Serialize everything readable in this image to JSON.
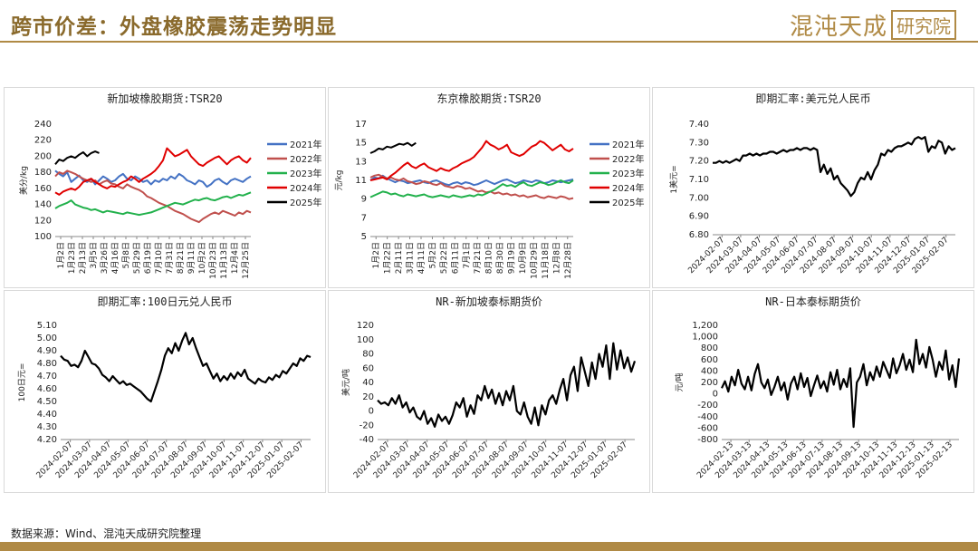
{
  "header": {
    "title": "跨市价差：外盘橡胶震荡走势明显",
    "logo_text": "混沌天成",
    "logo_box_text": "研究院"
  },
  "footer": {
    "source": "数据来源：Wind、混沌天成研究院整理"
  },
  "colors": {
    "2021": "#4472c4",
    "2022": "#c0504d",
    "2023": "#22b14c",
    "2024": "#e00000",
    "2025": "#000000",
    "accent": "#b08a45"
  },
  "chart_data": [
    {
      "id": "sg",
      "type": "line",
      "title": "新加坡橡胶期货:TSR20",
      "ylabel": "美分/kg",
      "ylim": [
        100,
        240
      ],
      "yticks": [
        100,
        120,
        140,
        160,
        180,
        200,
        220,
        240
      ],
      "xticks": [
        "1月2日",
        "1月23日",
        "2月13日",
        "3月5日",
        "3月26日",
        "4月16日",
        "5月8日",
        "5月29日",
        "6月19日",
        "7月10日",
        "7月31日",
        "8月21日",
        "9月11日",
        "10月2日",
        "10月23日",
        "11月13日",
        "12月4日",
        "12月25日"
      ],
      "series": [
        {
          "name": "2021年",
          "color": "#4472c4",
          "values": [
            182,
            178,
            175,
            180,
            168,
            172,
            176,
            170,
            168,
            172,
            165,
            170,
            175,
            172,
            168,
            170,
            175,
            178,
            172,
            170,
            175,
            172,
            168,
            170,
            165,
            170,
            168,
            172,
            170,
            175,
            172,
            178,
            175,
            170,
            168,
            165,
            170,
            168,
            162,
            165,
            170,
            172,
            168,
            165,
            170,
            172,
            170,
            168,
            172,
            175
          ]
        },
        {
          "name": "2022年",
          "color": "#c0504d",
          "values": [
            175,
            180,
            178,
            182,
            180,
            178,
            175,
            172,
            170,
            168,
            170,
            165,
            168,
            170,
            166,
            165,
            162,
            160,
            165,
            162,
            160,
            158,
            155,
            150,
            148,
            145,
            142,
            140,
            138,
            135,
            132,
            130,
            128,
            125,
            122,
            120,
            118,
            122,
            125,
            128,
            130,
            128,
            132,
            130,
            128,
            126,
            130,
            128,
            132,
            130
          ]
        },
        {
          "name": "2023年",
          "color": "#22b14c",
          "values": [
            135,
            138,
            140,
            142,
            145,
            140,
            138,
            136,
            135,
            133,
            134,
            132,
            130,
            132,
            131,
            130,
            129,
            128,
            130,
            129,
            128,
            127,
            128,
            129,
            130,
            132,
            134,
            136,
            138,
            140,
            142,
            141,
            140,
            142,
            144,
            146,
            145,
            147,
            148,
            146,
            145,
            147,
            149,
            150,
            148,
            150,
            152,
            151,
            153,
            155
          ]
        },
        {
          "name": "2024年",
          "color": "#e00000",
          "values": [
            155,
            152,
            156,
            158,
            160,
            158,
            162,
            168,
            170,
            172,
            168,
            165,
            162,
            160,
            163,
            162,
            165,
            168,
            170,
            175,
            172,
            168,
            172,
            175,
            178,
            182,
            188,
            195,
            210,
            205,
            200,
            202,
            205,
            208,
            200,
            195,
            190,
            188,
            192,
            195,
            198,
            200,
            195,
            190,
            195,
            198,
            200,
            195,
            192,
            198
          ]
        },
        {
          "name": "2025年",
          "color": "#000000",
          "values": [
            190,
            196,
            194,
            198,
            200,
            198,
            202,
            205,
            200,
            204,
            206,
            204
          ]
        }
      ],
      "legend_position": "right"
    },
    {
      "id": "jp",
      "type": "line",
      "title": "东京橡胶期货:TSR20",
      "ylabel": "元/kg",
      "ylim": [
        5,
        17
      ],
      "yticks": [
        5,
        7,
        9,
        11,
        13,
        15,
        17
      ],
      "xticks": [
        "1月2日",
        "1月22日",
        "2月11日",
        "3月11日",
        "4月11日",
        "5月2日",
        "5月22日",
        "6月11日",
        "7月1日",
        "7月21日",
        "8月10日",
        "8月30日",
        "9月19日",
        "10月9日",
        "10月29日",
        "11月18日",
        "12月8日",
        "12月28日"
      ],
      "series": [
        {
          "name": "2021年",
          "color": "#4472c4",
          "values": [
            11.0,
            11.3,
            11.2,
            11.5,
            11.2,
            11.0,
            10.8,
            11.0,
            10.9,
            10.7,
            10.8,
            10.9,
            11.0,
            10.8,
            10.7,
            10.9,
            11.0,
            10.8,
            10.6,
            10.5,
            10.7,
            10.8,
            10.6,
            10.8,
            10.7,
            10.5,
            10.6,
            10.8,
            11.0,
            10.8,
            10.6,
            10.8,
            11.0,
            11.1,
            10.9,
            10.7,
            10.8,
            11.0,
            10.9,
            10.8,
            11.0,
            10.9,
            10.7,
            10.8,
            11.0,
            10.9,
            10.8,
            10.9,
            11.0,
            11.1
          ]
        },
        {
          "name": "2022年",
          "color": "#c0504d",
          "values": [
            11.3,
            11.5,
            11.6,
            11.4,
            11.2,
            11.3,
            11.1,
            11.0,
            11.2,
            10.9,
            10.8,
            10.6,
            10.7,
            10.9,
            10.8,
            10.6,
            10.5,
            10.7,
            10.4,
            10.3,
            10.2,
            10.4,
            10.3,
            10.1,
            10.2,
            10.0,
            9.8,
            9.9,
            9.7,
            9.8,
            9.6,
            9.7,
            9.5,
            9.6,
            9.4,
            9.5,
            9.3,
            9.4,
            9.2,
            9.3,
            9.4,
            9.2,
            9.1,
            9.3,
            9.2,
            9.1,
            9.3,
            9.2,
            9.0,
            9.1
          ]
        },
        {
          "name": "2023年",
          "color": "#22b14c",
          "values": [
            9.2,
            9.4,
            9.6,
            9.8,
            9.7,
            9.5,
            9.6,
            9.4,
            9.3,
            9.5,
            9.4,
            9.3,
            9.4,
            9.5,
            9.3,
            9.2,
            9.3,
            9.4,
            9.3,
            9.2,
            9.4,
            9.3,
            9.2,
            9.3,
            9.4,
            9.3,
            9.5,
            9.4,
            9.6,
            9.8,
            10.0,
            10.3,
            10.6,
            10.4,
            10.5,
            10.3,
            10.6,
            10.8,
            10.5,
            10.4,
            10.6,
            10.8,
            10.7,
            10.5,
            10.6,
            10.8,
            11.0,
            10.8,
            10.7,
            11.0
          ]
        },
        {
          "name": "2024年",
          "color": "#e00000",
          "values": [
            11.0,
            11.1,
            11.2,
            11.3,
            11.1,
            11.5,
            11.8,
            12.2,
            12.6,
            12.9,
            12.5,
            12.3,
            12.6,
            12.8,
            12.4,
            12.2,
            12.0,
            12.3,
            12.1,
            12.0,
            12.3,
            12.5,
            12.8,
            13.0,
            13.2,
            13.5,
            14.0,
            14.5,
            15.2,
            14.8,
            14.6,
            14.3,
            14.5,
            14.8,
            14.0,
            13.8,
            13.6,
            13.8,
            14.2,
            14.6,
            14.8,
            15.2,
            15.0,
            14.6,
            14.2,
            14.5,
            14.8,
            14.3,
            14.1,
            14.4
          ]
        },
        {
          "name": "2025年",
          "color": "#000000",
          "values": [
            13.9,
            14.1,
            14.4,
            14.3,
            14.6,
            14.5,
            14.7,
            14.9,
            14.8,
            15.0,
            14.7,
            15.0
          ]
        }
      ],
      "legend_position": "right"
    },
    {
      "id": "fx",
      "type": "line",
      "title": "即期汇率:美元兑人民币",
      "ylabel": "1美元=",
      "ylim": [
        6.8,
        7.4
      ],
      "yticks": [
        "6.80",
        "6.90",
        "7.00",
        "7.10",
        "7.20",
        "7.30",
        "7.40"
      ],
      "xticks": [
        "2024-02-07",
        "2024-03-07",
        "2024-04-07",
        "2024-05-07",
        "2024-06-07",
        "2024-07-07",
        "2024-08-07",
        "2024-09-07",
        "2024-10-07",
        "2024-11-07",
        "2024-12-07",
        "2025-01-07",
        "2025-02-07"
      ],
      "series": [
        {
          "name": "",
          "color": "#000000",
          "values": [
            7.19,
            7.19,
            7.2,
            7.19,
            7.2,
            7.19,
            7.2,
            7.21,
            7.2,
            7.23,
            7.23,
            7.24,
            7.23,
            7.24,
            7.23,
            7.24,
            7.24,
            7.25,
            7.25,
            7.24,
            7.25,
            7.26,
            7.25,
            7.26,
            7.26,
            7.27,
            7.26,
            7.27,
            7.27,
            7.26,
            7.27,
            7.26,
            7.14,
            7.18,
            7.13,
            7.16,
            7.1,
            7.12,
            7.08,
            7.06,
            7.04,
            7.01,
            7.03,
            7.08,
            7.11,
            7.1,
            7.14,
            7.1,
            7.15,
            7.18,
            7.24,
            7.23,
            7.26,
            7.25,
            7.27,
            7.28,
            7.28,
            7.29,
            7.3,
            7.29,
            7.32,
            7.33,
            7.32,
            7.33,
            7.25,
            7.28,
            7.27,
            7.31,
            7.3,
            7.24,
            7.28,
            7.26,
            7.27
          ]
        }
      ],
      "legend_position": "none"
    },
    {
      "id": "jpy",
      "type": "line",
      "title": "即期汇率:100日元兑人民币",
      "ylabel": "100日元=",
      "ylim": [
        4.2,
        5.1
      ],
      "yticks": [
        "4.20",
        "4.30",
        "4.40",
        "4.50",
        "4.60",
        "4.70",
        "4.80",
        "4.90",
        "5.00",
        "5.10"
      ],
      "xticks": [
        "2024-02-07",
        "2024-03-07",
        "2024-04-07",
        "2024-05-07",
        "2024-06-07",
        "2024-07-07",
        "2024-08-07",
        "2024-09-07",
        "2024-10-07",
        "2024-11-07",
        "2024-12-07",
        "2025-01-07",
        "2025-02-07"
      ],
      "series": [
        {
          "name": "",
          "color": "#000000",
          "values": [
            4.86,
            4.83,
            4.82,
            4.78,
            4.79,
            4.77,
            4.82,
            4.9,
            4.85,
            4.8,
            4.79,
            4.76,
            4.71,
            4.69,
            4.66,
            4.7,
            4.67,
            4.64,
            4.66,
            4.63,
            4.64,
            4.62,
            4.6,
            4.58,
            4.55,
            4.52,
            4.5,
            4.58,
            4.66,
            4.75,
            4.86,
            4.92,
            4.88,
            4.96,
            4.9,
            4.98,
            5.04,
            4.95,
            5.0,
            4.92,
            4.85,
            4.78,
            4.8,
            4.74,
            4.68,
            4.72,
            4.66,
            4.7,
            4.67,
            4.72,
            4.68,
            4.73,
            4.7,
            4.75,
            4.68,
            4.66,
            4.64,
            4.68,
            4.66,
            4.65,
            4.69,
            4.67,
            4.71,
            4.69,
            4.74,
            4.72,
            4.76,
            4.8,
            4.78,
            4.84,
            4.82,
            4.86,
            4.85
          ]
        }
      ],
      "legend_position": "none"
    },
    {
      "id": "nrsg",
      "type": "line",
      "title": "NR-新加坡泰标期货价",
      "ylabel": "美元/吨",
      "ylim": [
        -40,
        120
      ],
      "yticks": [
        -40,
        -20,
        0,
        20,
        40,
        60,
        80,
        100,
        120
      ],
      "xticks": [
        "2024-02-07",
        "2024-03-07",
        "2024-04-07",
        "2024-05-07",
        "2024-06-07",
        "2024-07-07",
        "2024-08-07",
        "2024-09-07",
        "2024-10-07",
        "2024-11-07",
        "2024-12-07",
        "2025-01-07",
        "2025-02-07"
      ],
      "series": [
        {
          "name": "",
          "color": "#000000",
          "values": [
            15,
            10,
            12,
            8,
            18,
            10,
            22,
            5,
            12,
            -2,
            5,
            -8,
            -12,
            0,
            -18,
            -10,
            -22,
            -5,
            -14,
            -8,
            -18,
            -6,
            12,
            5,
            18,
            -8,
            8,
            -4,
            22,
            15,
            35,
            18,
            30,
            10,
            25,
            8,
            28,
            15,
            35,
            0,
            -5,
            12,
            -8,
            -18,
            5,
            -20,
            8,
            -5,
            15,
            22,
            10,
            30,
            45,
            15,
            50,
            62,
            28,
            75,
            55,
            35,
            68,
            45,
            80,
            62,
            92,
            45,
            95,
            58,
            85,
            60,
            75,
            55,
            70
          ]
        }
      ],
      "legend_position": "none"
    },
    {
      "id": "nrjp",
      "type": "line",
      "title": "NR-日本泰标期货价",
      "ylabel": "元/吨",
      "ylim": [
        -800,
        1200
      ],
      "yticks": [
        "-800",
        "-600",
        "-400",
        "-200",
        "0",
        "200",
        "400",
        "600",
        "800",
        "1,000",
        "1,200"
      ],
      "xticks": [
        "2024-02-13",
        "2024-03-13",
        "2024-04-13",
        "2024-05-13",
        "2024-06-13",
        "2024-07-13",
        "2024-08-13",
        "2024-09-13",
        "2024-10-13",
        "2024-11-13",
        "2024-12-13",
        "2025-01-13",
        "2025-02-13"
      ],
      "series": [
        {
          "name": "",
          "color": "#000000",
          "values": [
            100,
            220,
            40,
            300,
            150,
            420,
            180,
            80,
            300,
            60,
            350,
            520,
            200,
            100,
            250,
            -20,
            120,
            300,
            60,
            200,
            -100,
            180,
            300,
            80,
            360,
            120,
            280,
            -40,
            150,
            320,
            100,
            220,
            40,
            380,
            160,
            420,
            80,
            260,
            120,
            450,
            -580,
            200,
            300,
            520,
            150,
            380,
            240,
            480,
            300,
            560,
            420,
            280,
            620,
            360,
            500,
            700,
            420,
            600,
            380,
            950,
            520,
            700,
            460,
            820,
            600,
            300,
            560,
            420,
            760,
            250,
            500,
            120,
            620
          ]
        }
      ],
      "legend_position": "none"
    }
  ]
}
